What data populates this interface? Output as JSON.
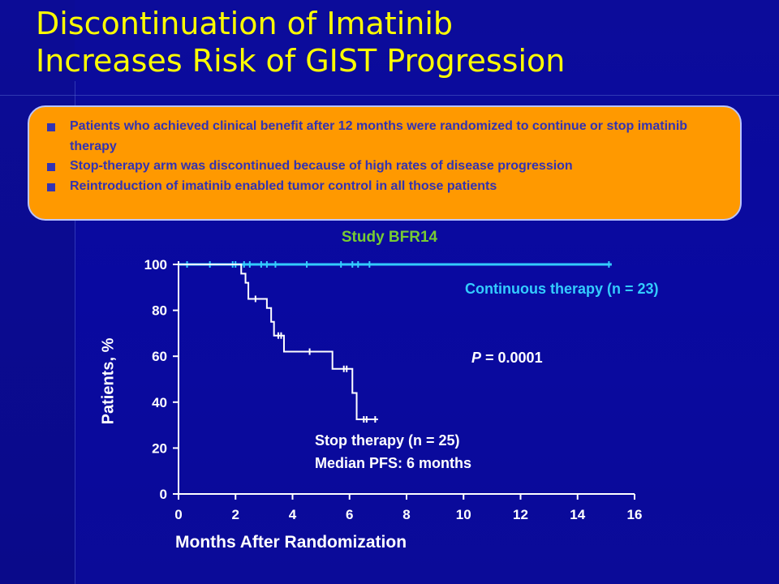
{
  "slide": {
    "title_line1": "Discontinuation of Imatinib",
    "title_line2": "Increases Risk of GIST Progression",
    "bullets": [
      "Patients who achieved clinical benefit after 12 months were randomized to continue or stop imatinib therapy",
      "Stop-therapy arm was discontinued because of high rates of disease progression",
      "Reintroduction of imatinib enabled tumor control in all those patients"
    ],
    "colors": {
      "background": "#0a0a8c",
      "title": "#ffff00",
      "callout_fill": "#ff9900",
      "callout_text": "#3333b3",
      "study_label": "#77cc33",
      "continuous_series": "#33ccff",
      "stop_series": "#ffffff"
    }
  },
  "chart_data": {
    "type": "line",
    "subtype": "kaplan-meier step",
    "title": "Study BFR14",
    "xlabel": "Months After Randomization",
    "ylabel": "Patients, %",
    "xlim": [
      0,
      16
    ],
    "ylim": [
      0,
      100
    ],
    "xticks": [
      "0",
      "2",
      "4",
      "6",
      "8",
      "10",
      "12",
      "14",
      "16"
    ],
    "yticks": [
      "0",
      "20",
      "40",
      "60",
      "80",
      "100"
    ],
    "grid": false,
    "legend": "none (direct labels)",
    "annotations": {
      "continuous": "Continuous therapy (n = 23)",
      "stop_line1": "Stop therapy (n = 25)",
      "stop_line2": "Median PFS: 6 months",
      "p_label": "P",
      "p_value": "= 0.0001"
    },
    "series": [
      {
        "name": "Continuous therapy (n = 23)",
        "color": "#33ccff",
        "steps": [
          [
            0,
            100
          ],
          [
            15.2,
            100
          ]
        ],
        "censored": [
          0.3,
          1.1,
          1.9,
          2.0,
          2.3,
          2.5,
          2.9,
          3.1,
          3.4,
          4.5,
          5.7,
          6.1,
          6.3,
          6.7,
          15.1
        ]
      },
      {
        "name": "Stop therapy (n = 25)",
        "color": "#ffffff",
        "steps": [
          [
            0,
            100
          ],
          [
            2.2,
            100
          ],
          [
            2.2,
            96
          ],
          [
            2.35,
            96
          ],
          [
            2.35,
            92
          ],
          [
            2.45,
            92
          ],
          [
            2.45,
            85
          ],
          [
            3.1,
            85
          ],
          [
            3.1,
            81
          ],
          [
            3.25,
            81
          ],
          [
            3.25,
            75
          ],
          [
            3.35,
            75
          ],
          [
            3.35,
            69
          ],
          [
            3.7,
            69
          ],
          [
            3.7,
            62
          ],
          [
            5.4,
            62
          ],
          [
            5.4,
            54.5
          ],
          [
            6.1,
            54.5
          ],
          [
            6.1,
            44
          ],
          [
            6.25,
            44
          ],
          [
            6.25,
            32.5
          ],
          [
            7.0,
            32.5
          ]
        ],
        "censored": [
          2.7,
          3.5,
          3.6,
          4.6,
          5.8,
          5.9,
          6.5,
          6.6,
          6.9
        ]
      }
    ]
  }
}
